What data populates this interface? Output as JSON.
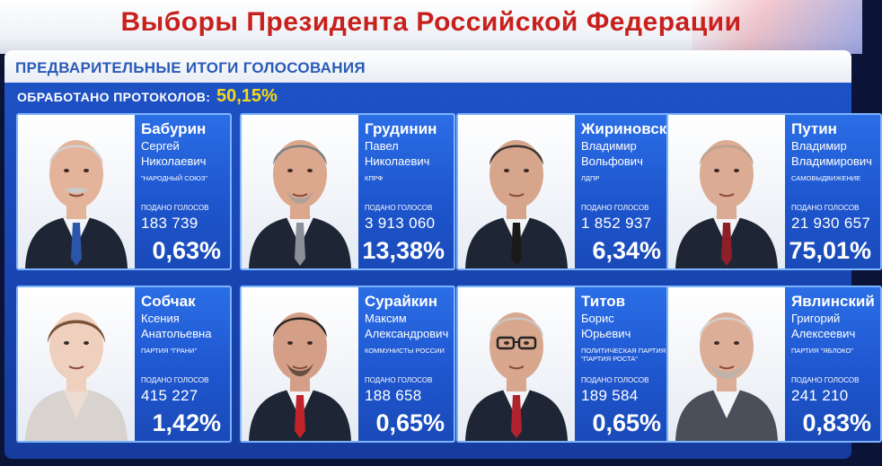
{
  "header": {
    "title": "Выборы Президента Российской Федерации"
  },
  "results": {
    "subtitle": "ПРЕДВАРИТЕЛЬНЫЕ ИТОГИ ГОЛОСОВАНИЯ",
    "protocols_label": "ОБРАБОТАНО ПРОТОКОЛОВ:",
    "protocols_value": "50,15%",
    "votes_label": "подано голосов"
  },
  "candidates": [
    {
      "surname": "Бабурин",
      "first": "Сергей",
      "patronymic": "Николаевич",
      "party": "\"Народный союз\"",
      "party2": "",
      "votes": "183 739",
      "percent": "0,63%",
      "tie": "#2a55a8"
    },
    {
      "surname": "Грудинин",
      "first": "Павел",
      "patronymic": "Николаевич",
      "party": "КПРФ",
      "party2": "",
      "votes": "3 913 060",
      "percent": "13,38%",
      "tie": "#8a8f99"
    },
    {
      "surname": "Жириновский",
      "first": "Владимир",
      "patronymic": "Вольфович",
      "party": "ЛДПР",
      "party2": "",
      "votes": "1 852 937",
      "percent": "6,34%",
      "tie": "#1a1a1a"
    },
    {
      "surname": "Путин",
      "first": "Владимир",
      "patronymic": "Владимирович",
      "party": "Самовыдвижение",
      "party2": "",
      "votes": "21 930 657",
      "percent": "75,01%",
      "tie": "#8c1f28"
    },
    {
      "surname": "Собчак",
      "first": "Ксения",
      "patronymic": "Анатольевна",
      "party": "Партия \"Грани\"",
      "party2": "",
      "votes": "415 227",
      "percent": "1,42%",
      "tie": ""
    },
    {
      "surname": "Сурайкин",
      "first": "Максим",
      "patronymic": "Александрович",
      "party": "Коммунисты России",
      "party2": "",
      "votes": "188 658",
      "percent": "0,65%",
      "tie": "#c0242a"
    },
    {
      "surname": "Титов",
      "first": "Борис",
      "patronymic": "Юрьевич",
      "party": "Политическая партия",
      "party2": "\"Партия Роста\"",
      "votes": "189 584",
      "percent": "0,65%",
      "tie": "#b0232e"
    },
    {
      "surname": "Явлинский",
      "first": "Григорий",
      "patronymic": "Алексеевич",
      "party": "Партия \"Яблоко\"",
      "party2": "",
      "votes": "241 210",
      "percent": "0,83%",
      "tie": ""
    }
  ]
}
